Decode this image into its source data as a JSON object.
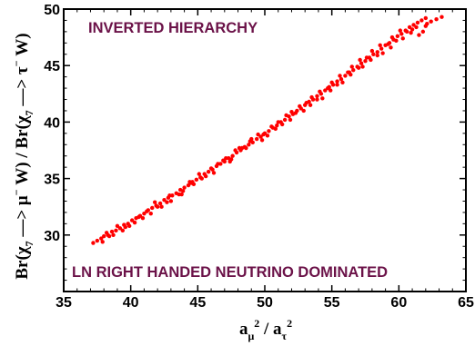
{
  "chart_data": {
    "type": "scatter",
    "title": "",
    "xlim": [
      35,
      65
    ],
    "ylim": [
      25,
      50
    ],
    "x_ticks": [
      "35",
      "40",
      "45",
      "50",
      "55",
      "60",
      "65"
    ],
    "y_ticks": [
      "25",
      "30",
      "35",
      "40",
      "45",
      "50"
    ],
    "annotations": [
      "INVERTED HIERARCHY",
      "LN RIGHT HANDED NEUTRINO DOMINATED"
    ],
    "marker_color": "#ff0000",
    "annotation_color": "#6b1248",
    "grid": false,
    "series": [
      {
        "points": [
          [
            37.2,
            29.3
          ],
          [
            37.5,
            29.5
          ],
          [
            37.8,
            29.7
          ],
          [
            38.0,
            29.9
          ],
          [
            38.3,
            30.0
          ],
          [
            38.6,
            30.3
          ],
          [
            38.9,
            30.4
          ],
          [
            39.2,
            30.6
          ],
          [
            39.5,
            30.9
          ],
          [
            39.8,
            31.0
          ],
          [
            40.1,
            31.3
          ],
          [
            40.4,
            31.5
          ],
          [
            40.7,
            31.7
          ],
          [
            41.0,
            31.9
          ],
          [
            41.3,
            32.2
          ],
          [
            41.6,
            32.4
          ],
          [
            41.9,
            32.6
          ],
          [
            42.2,
            32.8
          ],
          [
            42.5,
            33.1
          ],
          [
            42.8,
            33.3
          ],
          [
            43.1,
            33.5
          ],
          [
            43.4,
            33.7
          ],
          [
            43.7,
            34.0
          ],
          [
            44.0,
            34.2
          ],
          [
            44.3,
            34.4
          ],
          [
            44.6,
            34.7
          ],
          [
            44.9,
            34.9
          ],
          [
            45.2,
            35.1
          ],
          [
            45.5,
            35.4
          ],
          [
            45.8,
            35.6
          ],
          [
            46.1,
            35.8
          ],
          [
            46.4,
            36.1
          ],
          [
            46.7,
            36.3
          ],
          [
            47.0,
            36.5
          ],
          [
            47.3,
            36.8
          ],
          [
            47.6,
            37.0
          ],
          [
            47.9,
            37.3
          ],
          [
            48.2,
            37.5
          ],
          [
            48.5,
            37.8
          ],
          [
            48.8,
            38.0
          ],
          [
            49.1,
            38.2
          ],
          [
            49.4,
            38.5
          ],
          [
            49.7,
            38.7
          ],
          [
            50.0,
            39.0
          ],
          [
            50.3,
            39.2
          ],
          [
            50.6,
            39.5
          ],
          [
            50.9,
            39.7
          ],
          [
            51.2,
            40.0
          ],
          [
            51.5,
            40.2
          ],
          [
            51.8,
            40.5
          ],
          [
            52.1,
            40.7
          ],
          [
            52.4,
            41.0
          ],
          [
            52.7,
            41.2
          ],
          [
            53.0,
            41.5
          ],
          [
            53.3,
            41.8
          ],
          [
            53.6,
            42.0
          ],
          [
            53.9,
            42.3
          ],
          [
            54.2,
            42.5
          ],
          [
            54.5,
            42.8
          ],
          [
            54.8,
            43.1
          ],
          [
            55.1,
            43.3
          ],
          [
            55.4,
            43.6
          ],
          [
            55.7,
            43.8
          ],
          [
            56.0,
            44.1
          ],
          [
            56.3,
            44.4
          ],
          [
            56.6,
            44.6
          ],
          [
            56.9,
            44.9
          ],
          [
            57.2,
            45.2
          ],
          [
            57.5,
            45.4
          ],
          [
            57.8,
            45.7
          ],
          [
            58.1,
            46.0
          ],
          [
            58.4,
            46.2
          ],
          [
            58.7,
            46.5
          ],
          [
            59.0,
            46.8
          ],
          [
            59.3,
            47.0
          ],
          [
            59.6,
            47.3
          ],
          [
            59.9,
            47.6
          ],
          [
            60.2,
            47.8
          ],
          [
            60.5,
            48.1
          ],
          [
            60.8,
            48.4
          ],
          [
            61.1,
            48.6
          ],
          [
            61.4,
            48.8
          ],
          [
            61.7,
            49.0
          ],
          [
            62.0,
            49.2
          ],
          [
            62.4,
            48.9
          ],
          [
            62.8,
            49.1
          ],
          [
            63.2,
            49.3
          ],
          [
            61.8,
            48.0
          ],
          [
            61.5,
            47.7
          ],
          [
            60.9,
            47.9
          ],
          [
            37.9,
            29.4
          ],
          [
            38.7,
            30.0
          ],
          [
            39.4,
            30.4
          ],
          [
            40.6,
            31.6
          ],
          [
            41.5,
            31.9
          ],
          [
            42.3,
            32.5
          ],
          [
            43.0,
            33.0
          ],
          [
            43.9,
            33.9
          ],
          [
            44.5,
            34.6
          ],
          [
            45.3,
            35.0
          ],
          [
            46.0,
            35.9
          ],
          [
            46.9,
            36.6
          ],
          [
            47.5,
            36.7
          ],
          [
            48.3,
            37.7
          ],
          [
            49.0,
            38.5
          ],
          [
            49.8,
            38.4
          ],
          [
            50.5,
            39.6
          ],
          [
            51.3,
            39.8
          ],
          [
            52.0,
            40.9
          ],
          [
            52.9,
            41.0
          ],
          [
            53.5,
            42.2
          ],
          [
            54.3,
            42.1
          ],
          [
            55.0,
            43.5
          ],
          [
            55.8,
            43.5
          ],
          [
            56.5,
            44.9
          ],
          [
            57.3,
            44.9
          ],
          [
            58.0,
            46.3
          ],
          [
            58.8,
            46.1
          ],
          [
            59.5,
            47.5
          ],
          [
            60.3,
            47.4
          ],
          [
            38.2,
            30.2
          ],
          [
            39.0,
            30.8
          ],
          [
            39.9,
            30.8
          ],
          [
            40.9,
            31.5
          ],
          [
            41.8,
            32.9
          ],
          [
            42.7,
            32.9
          ],
          [
            43.6,
            33.6
          ],
          [
            44.4,
            34.7
          ],
          [
            45.1,
            35.4
          ],
          [
            46.2,
            35.5
          ],
          [
            47.1,
            36.8
          ],
          [
            47.8,
            37.5
          ],
          [
            48.6,
            37.7
          ],
          [
            49.5,
            38.9
          ],
          [
            50.2,
            38.8
          ],
          [
            51.0,
            40.0
          ],
          [
            51.9,
            40.2
          ],
          [
            52.6,
            41.4
          ],
          [
            53.4,
            41.5
          ],
          [
            54.1,
            42.7
          ],
          [
            54.9,
            42.8
          ],
          [
            55.6,
            44.1
          ],
          [
            56.4,
            44.2
          ],
          [
            57.1,
            45.5
          ],
          [
            57.9,
            45.5
          ],
          [
            58.6,
            46.8
          ],
          [
            59.4,
            46.6
          ],
          [
            60.1,
            48.1
          ],
          [
            61.0,
            48.2
          ],
          [
            62.1,
            48.7
          ],
          [
            38.4,
            29.9
          ],
          [
            39.6,
            30.7
          ],
          [
            40.3,
            31.1
          ],
          [
            41.2,
            32.1
          ],
          [
            42.0,
            32.5
          ],
          [
            42.9,
            33.5
          ],
          [
            43.8,
            33.6
          ],
          [
            44.7,
            34.5
          ],
          [
            45.6,
            35.2
          ],
          [
            46.5,
            36.3
          ],
          [
            47.4,
            36.5
          ],
          [
            48.1,
            37.7
          ],
          [
            48.9,
            38.3
          ],
          [
            49.9,
            38.9
          ],
          [
            50.8,
            39.4
          ],
          [
            51.6,
            40.6
          ],
          [
            52.3,
            40.8
          ],
          [
            53.1,
            41.7
          ],
          [
            53.9,
            42.0
          ],
          [
            54.7,
            43.0
          ],
          [
            55.4,
            43.3
          ],
          [
            56.2,
            44.4
          ],
          [
            57.0,
            44.8
          ],
          [
            57.6,
            45.7
          ],
          [
            58.4,
            45.9
          ],
          [
            59.2,
            46.9
          ],
          [
            59.8,
            47.2
          ],
          [
            60.6,
            48.0
          ],
          [
            61.3,
            48.4
          ],
          [
            62.0,
            48.5
          ]
        ]
      }
    ]
  }
}
